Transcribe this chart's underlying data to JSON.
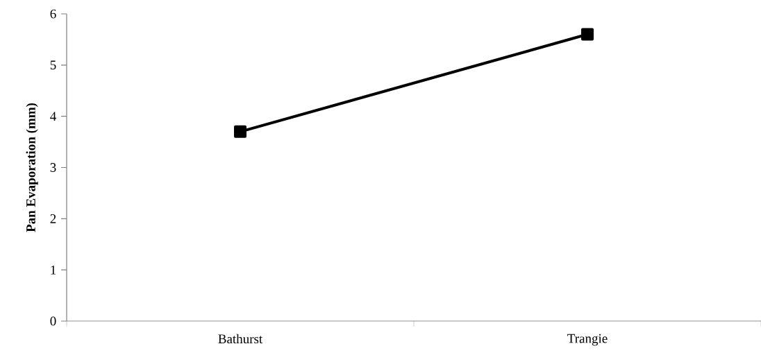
{
  "chart_data": {
    "type": "line",
    "ylabel": "**Pan Evaporation (mm)**",
    "categories": [
      "Bathurst",
      "Trangie"
    ],
    "series": [
      {
        "color": "#000000",
        "values": [
          3.7,
          5.6
        ]
      }
    ],
    "ylim": [
      0,
      6
    ],
    "yticks": [
      0,
      1,
      2,
      3,
      4,
      5,
      6
    ],
    "marker": "square",
    "line_style": "solid"
  }
}
